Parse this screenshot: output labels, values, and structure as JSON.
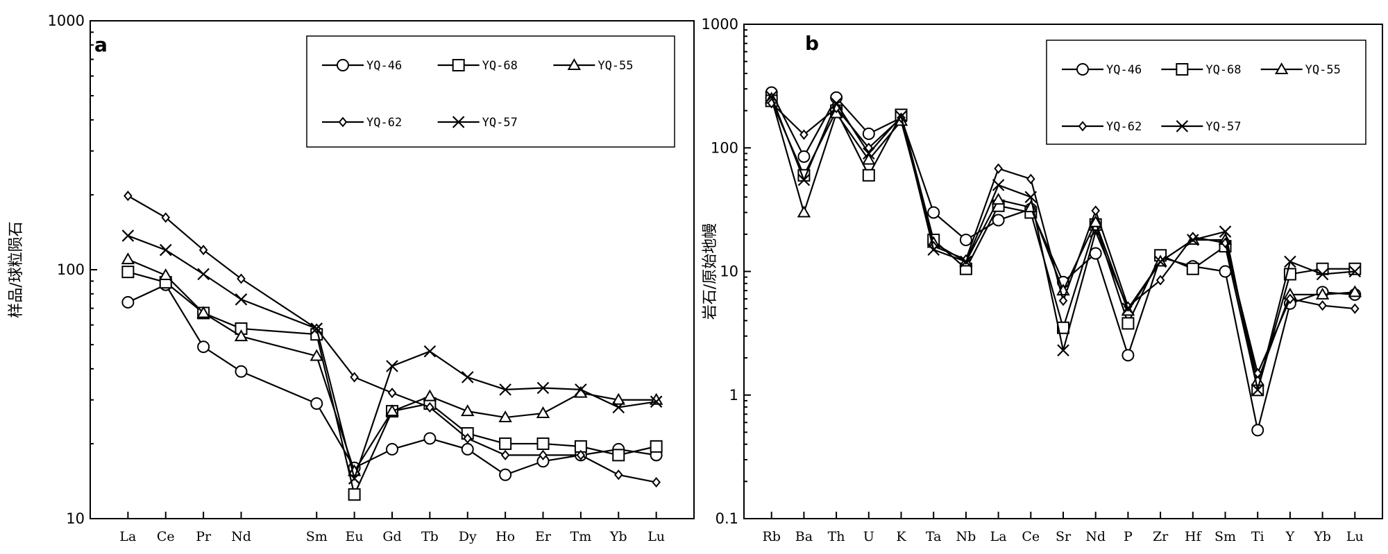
{
  "chart_data": [
    {
      "type": "line",
      "panel_label": "a",
      "ylabel": "样品/球粒陨石",
      "yscale": "log",
      "ylim": [
        10,
        1000
      ],
      "yticks": [
        "10",
        "100",
        "1000"
      ],
      "legend_position": "top-right",
      "categories": [
        "La",
        "Ce",
        "Pr",
        "Nd",
        "Sm",
        "Eu",
        "Gd",
        "Tb",
        "Dy",
        "Ho",
        "Er",
        "Tm",
        "Yb",
        "Lu"
      ],
      "x_positions": [
        1,
        2,
        3,
        4,
        6,
        7,
        8,
        9,
        10,
        11,
        12,
        13,
        14,
        15
      ],
      "series": [
        {
          "name": "YQ-46",
          "marker": "circle",
          "values": [
            74,
            87,
            49,
            39,
            29,
            16,
            19,
            21,
            19,
            15,
            17,
            18,
            19,
            18
          ]
        },
        {
          "name": "YQ-68",
          "marker": "square",
          "values": [
            98,
            89,
            67,
            58,
            55,
            12.5,
            27,
            29,
            22,
            20,
            20,
            19.5,
            18,
            19.5
          ]
        },
        {
          "name": "YQ-55",
          "marker": "triangle",
          "values": [
            110,
            95,
            67,
            54,
            45,
            15.5,
            27,
            31,
            27,
            25.5,
            26.5,
            32,
            30,
            30
          ]
        },
        {
          "name": "YQ-62",
          "marker": "diamond",
          "values": [
            198,
            162,
            120,
            92,
            58,
            37,
            32,
            28,
            21,
            18,
            18,
            18,
            15,
            14
          ]
        },
        {
          "name": "YQ-57",
          "marker": "x",
          "values": [
            137,
            120,
            96,
            76,
            58,
            14.5,
            41,
            47,
            37,
            33,
            33.5,
            33,
            28,
            29.5
          ]
        }
      ]
    },
    {
      "type": "line",
      "panel_label": "b",
      "ylabel": "岩石/原始地幔",
      "yscale": "log",
      "ylim": [
        0.1,
        1000
      ],
      "yticks": [
        "0.1",
        "1",
        "10",
        "100",
        "1000"
      ],
      "legend_position": "top-right",
      "categories": [
        "Rb",
        "Ba",
        "Th",
        "U",
        "K",
        "Ta",
        "Nb",
        "La",
        "Ce",
        "Sr",
        "Nd",
        "P",
        "Zr",
        "Hf",
        "Sm",
        "Ti",
        "Y",
        "Yb",
        "Lu"
      ],
      "series": [
        {
          "name": "YQ-46",
          "marker": "circle",
          "values": [
            280,
            85,
            255,
            130,
            175,
            30,
            18,
            26,
            32,
            8.2,
            14,
            2.1,
            13,
            11,
            10,
            0.52,
            5.5,
            6.8,
            6.5
          ]
        },
        {
          "name": "YQ-68",
          "marker": "square",
          "values": [
            240,
            60,
            200,
            60,
            185,
            18,
            10.5,
            34,
            30,
            3.5,
            24,
            3.8,
            13.5,
            10.5,
            16,
            1.1,
            9.5,
            10.5,
            10.5
          ]
        },
        {
          "name": "YQ-55",
          "marker": "triangle",
          "values": [
            250,
            30,
            190,
            80,
            165,
            17,
            12,
            38,
            33,
            7,
            25,
            4.8,
            12,
            18,
            18,
            1.3,
            6.5,
            6.5,
            6.8
          ]
        },
        {
          "name": "YQ-62",
          "marker": "diamond",
          "values": [
            230,
            128,
            210,
            100,
            175,
            16,
            12.5,
            68,
            56,
            5.8,
            31,
            5.2,
            8.5,
            19,
            17,
            1.5,
            6,
            5.3,
            5
          ]
        },
        {
          "name": "YQ-57",
          "marker": "x",
          "values": [
            260,
            55,
            230,
            90,
            180,
            15,
            12,
            50,
            40,
            2.3,
            21,
            5,
            12,
            18,
            21,
            1.1,
            12,
            9.5,
            10
          ]
        }
      ]
    }
  ]
}
